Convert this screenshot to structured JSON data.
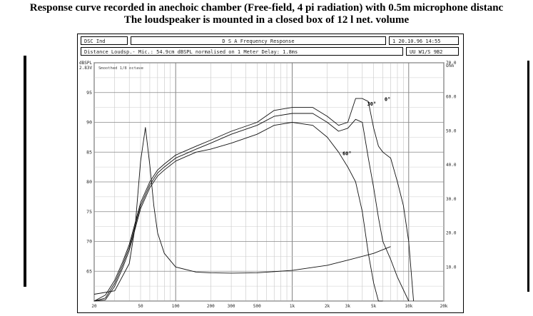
{
  "titles": {
    "line1": "Response curve recorded in anechoic chamber (Free-field, 4 pi radiation) with 0.5m microphone distanc",
    "line2": "The loudspeaker is mounted in a closed box of 12 l net. volume"
  },
  "header": {
    "left_box": "DSC Ind",
    "center_box": "D S A   Frequency Response",
    "date_box": "1 20.10.96 14:55",
    "info_line": "Distance Loudsp.- Mic.: 54.9cm  dBSPL normalised on 1 Meter  Delay: 1.8ms",
    "right_box": "UU  W1/S 9B2"
  },
  "chart_data": {
    "type": "line",
    "x_scale": "log",
    "xlim": [
      20,
      20000
    ],
    "ylim": [
      60,
      100
    ],
    "y2lim": [
      0,
      70
    ],
    "ylabel_top": "dBSPL",
    "ylabel_top_value": "2.83V",
    "y2label_top": "Ohm",
    "legend_note": "Smoothed 1/8 octave",
    "x_tick_labels": [
      "20",
      "50",
      "100",
      "200",
      "300",
      "500",
      "1k",
      "2k",
      "3k",
      "5k",
      "10k",
      "20k"
    ],
    "x_tick_values": [
      20,
      50,
      100,
      200,
      300,
      500,
      1000,
      2000,
      3000,
      5000,
      10000,
      20000
    ],
    "y_tick_labels": [
      "65",
      "70",
      "75",
      "80",
      "85",
      "90",
      "95"
    ],
    "y2_tick_labels": [
      "10.0",
      "20.0",
      "30.0",
      "40.0",
      "50.0",
      "60.0",
      "70.0"
    ],
    "series": [
      {
        "name": "0°",
        "x": [
          20,
          25,
          30,
          35,
          40,
          50,
          60,
          70,
          80,
          100,
          150,
          200,
          300,
          500,
          700,
          1000,
          1500,
          2000,
          2500,
          3000,
          3500,
          4000,
          4500,
          5000,
          5500,
          6000,
          7000,
          8000,
          9000,
          10000,
          11000
        ],
        "y": [
          60,
          61,
          63.5,
          66.5,
          69.5,
          76.5,
          80,
          82,
          83,
          84.5,
          86,
          87,
          88.5,
          90,
          92,
          92.5,
          92.5,
          91,
          89.5,
          90,
          94,
          94,
          93.5,
          89,
          86,
          85,
          84,
          80,
          76,
          70,
          60
        ]
      },
      {
        "name": "30°",
        "x": [
          20,
          25,
          30,
          35,
          40,
          50,
          60,
          70,
          80,
          100,
          150,
          200,
          300,
          500,
          700,
          1000,
          1500,
          2000,
          2500,
          3000,
          3500,
          4000,
          4500,
          5000,
          5500,
          6000,
          7000,
          8000,
          10000
        ],
        "y": [
          60,
          60.5,
          63,
          66,
          69,
          76,
          79.5,
          81.5,
          82.5,
          84,
          85.5,
          86.5,
          88,
          89.5,
          91,
          91.5,
          91.5,
          90,
          88.5,
          89,
          90.5,
          90,
          84,
          79,
          74,
          70,
          67,
          64,
          60
        ]
      },
      {
        "name": "60°",
        "x": [
          20,
          25,
          30,
          35,
          40,
          50,
          60,
          70,
          80,
          100,
          150,
          200,
          300,
          500,
          700,
          1000,
          1500,
          2000,
          2500,
          3000,
          3500,
          4000,
          4500,
          5000,
          5500,
          6000
        ],
        "y": [
          60,
          60.2,
          62.5,
          65.5,
          68.5,
          75.5,
          79,
          81,
          82,
          83.5,
          85,
          85.5,
          86.5,
          88,
          89.5,
          90,
          89.5,
          87.5,
          85,
          82.5,
          80,
          75,
          68,
          63,
          60,
          60
        ]
      },
      {
        "name": "Impedance",
        "axis": "right",
        "x": [
          20,
          30,
          40,
          45,
          50,
          55,
          60,
          65,
          70,
          80,
          100,
          150,
          200,
          300,
          500,
          1000,
          2000,
          3000,
          5000,
          7000
        ],
        "y": [
          2,
          3,
          11,
          22,
          41,
          51,
          40,
          28,
          20,
          14,
          10,
          8.5,
          8.3,
          8.2,
          8.3,
          9,
          10.5,
          12,
          14,
          16
        ]
      }
    ],
    "annotations": [
      "0°",
      "30°",
      "60°"
    ]
  }
}
